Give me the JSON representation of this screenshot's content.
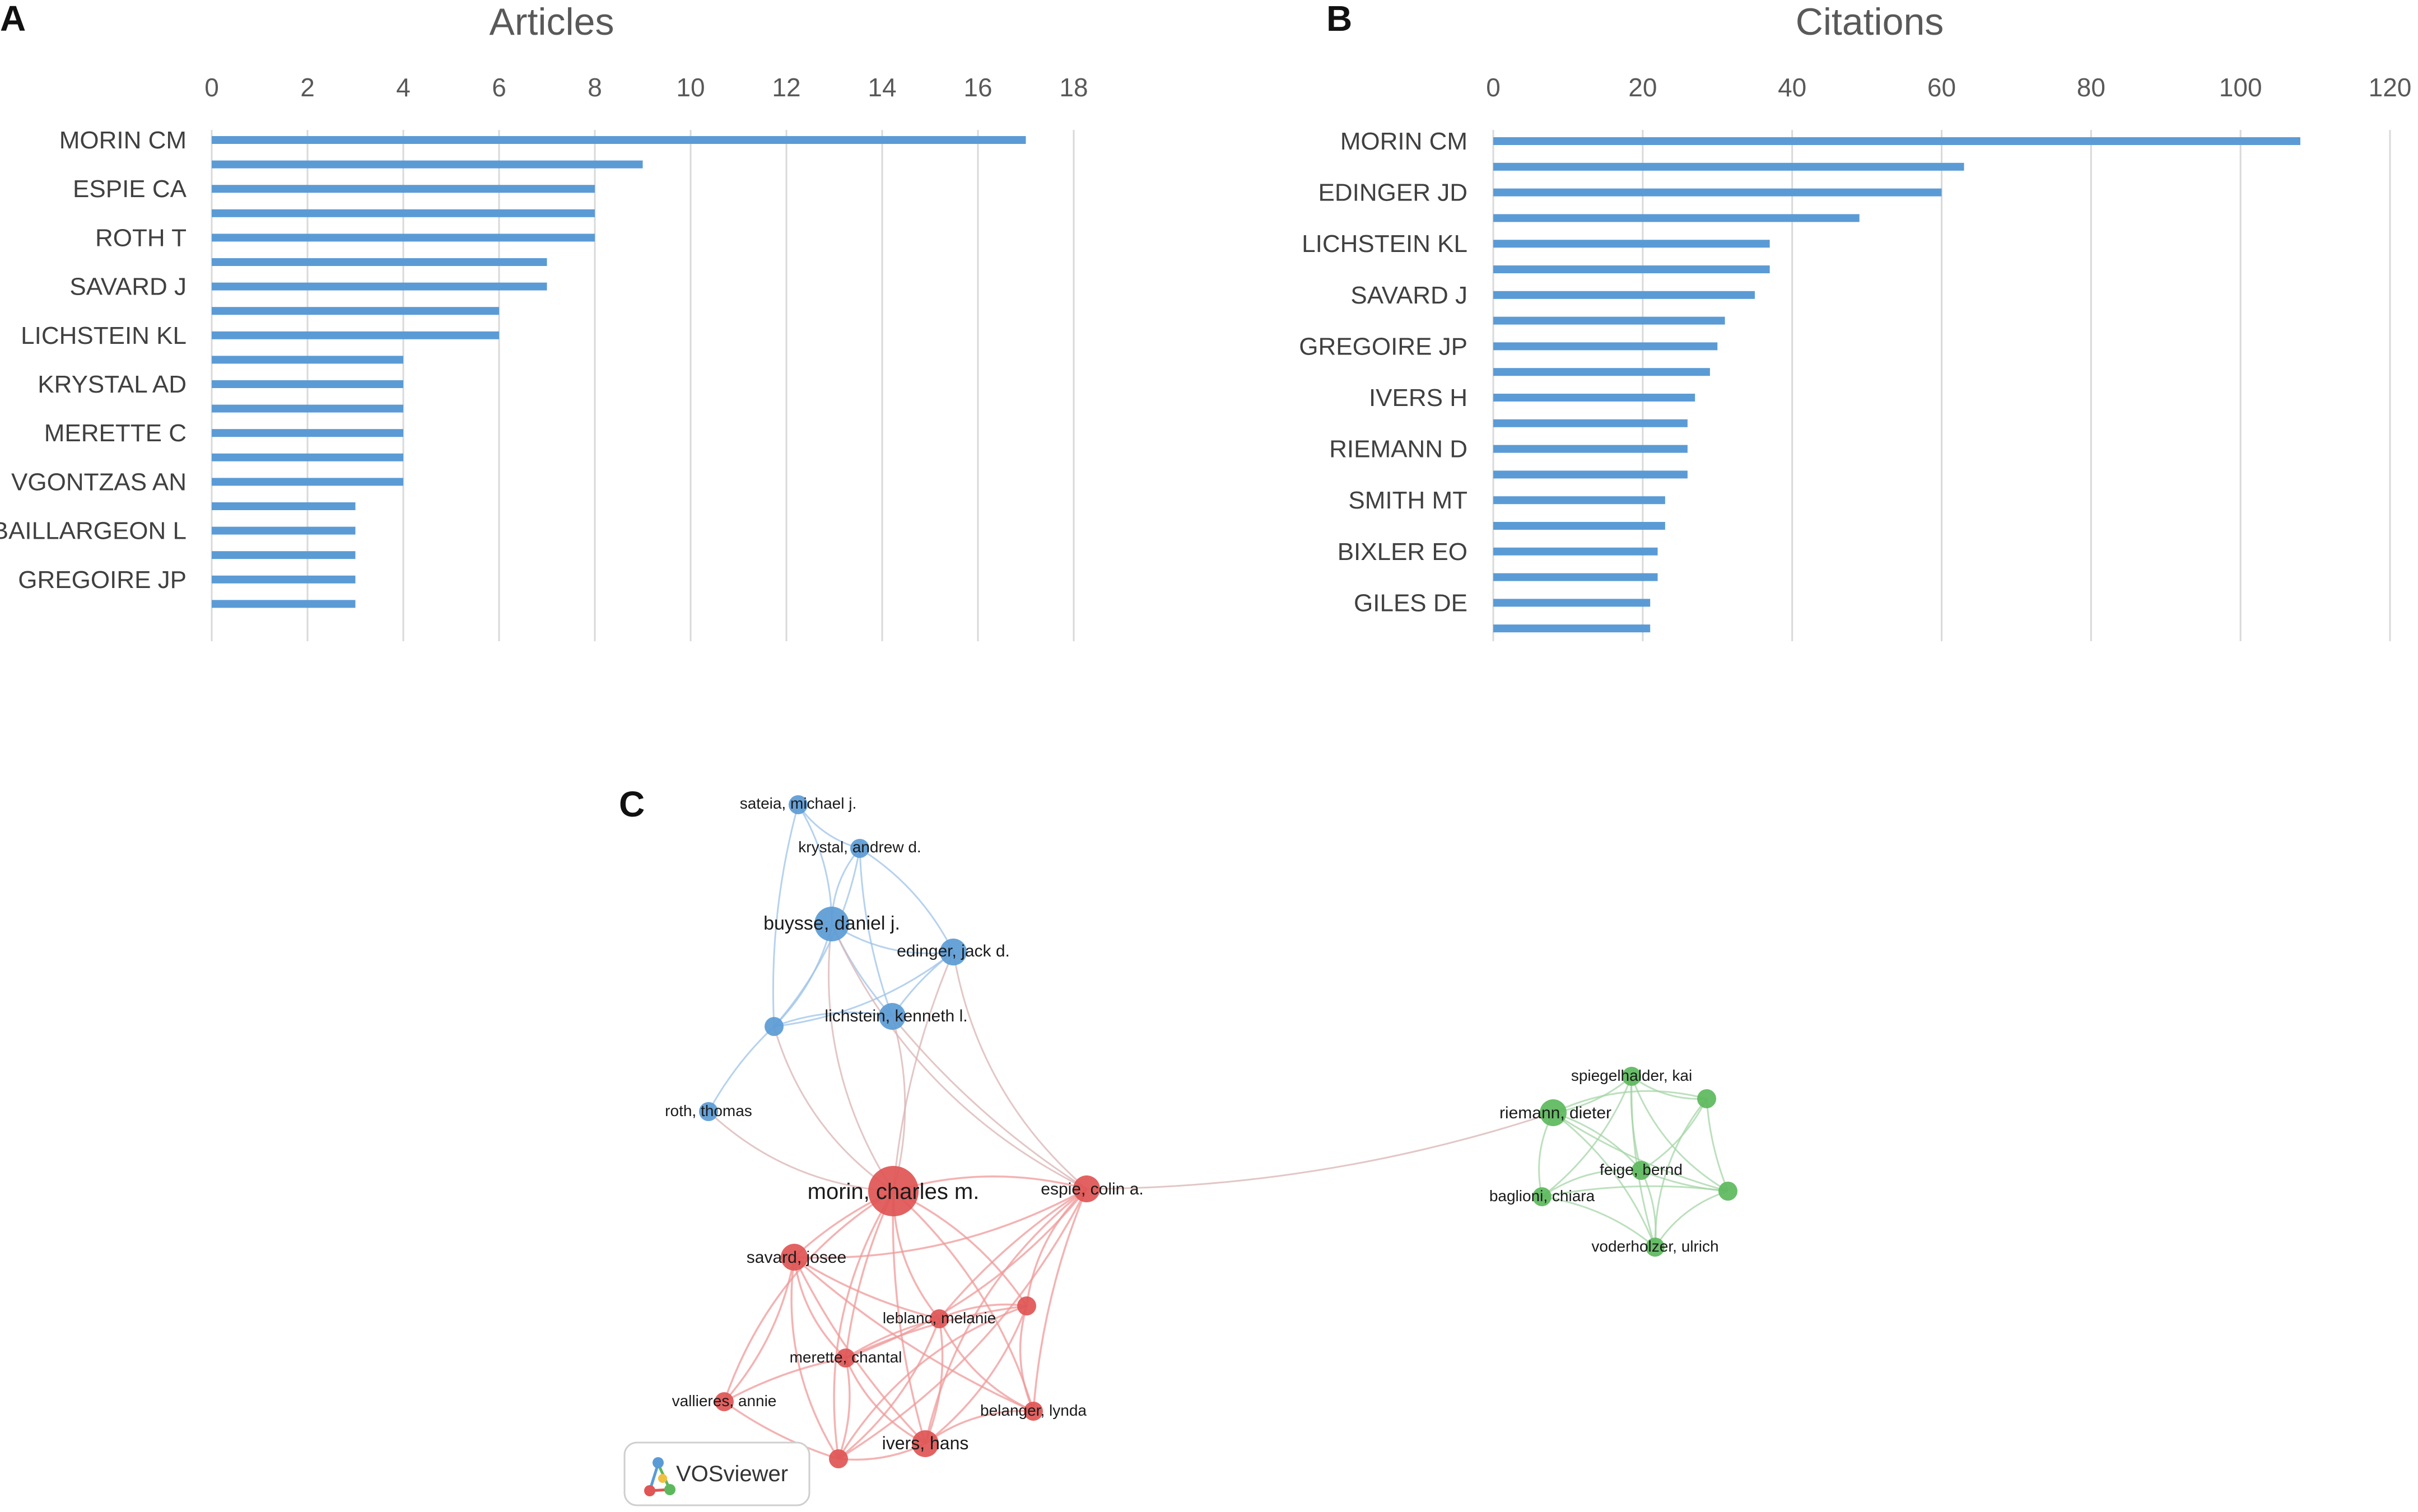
{
  "panels": {
    "a": "A",
    "b": "B",
    "c": "C"
  },
  "chart_data": [
    {
      "type": "bar",
      "orientation": "horizontal",
      "title": "Articles",
      "xlim": [
        0,
        18
      ],
      "xticks": [
        "0",
        "2",
        "4",
        "6",
        "8",
        "10",
        "12",
        "14",
        "16",
        "18"
      ],
      "grid": true,
      "categories": [
        "MORIN CM",
        "",
        "ESPIE CA",
        "",
        "ROTH T",
        "",
        "SAVARD J",
        "",
        "LICHSTEIN KL",
        "",
        "KRYSTAL AD",
        "",
        "MERETTE C",
        "",
        "VGONTZAS AN",
        "",
        "BAILLARGEON L",
        "",
        "GREGOIRE JP",
        ""
      ],
      "values": [
        17,
        9,
        8,
        8,
        8,
        7,
        7,
        6,
        6,
        4,
        4,
        4,
        4,
        4,
        4,
        3,
        3,
        3,
        3,
        3
      ],
      "color": "#5b9bd5"
    },
    {
      "type": "bar",
      "orientation": "horizontal",
      "title": "Citations",
      "xlim": [
        0,
        120
      ],
      "xticks": [
        "0",
        "20",
        "40",
        "60",
        "80",
        "100",
        "120"
      ],
      "grid": true,
      "categories": [
        "MORIN CM",
        "",
        "EDINGER JD",
        "",
        "LICHSTEIN KL",
        "",
        "SAVARD J",
        "",
        "GREGOIRE JP",
        "",
        "IVERS H",
        "",
        "RIEMANN D",
        "",
        "SMITH MT",
        "",
        "BIXLER EO",
        "",
        "GILES DE",
        ""
      ],
      "values": [
        108,
        63,
        60,
        49,
        37,
        37,
        35,
        31,
        30,
        29,
        27,
        26,
        26,
        26,
        23,
        23,
        22,
        22,
        21,
        21
      ],
      "color": "#5b9bd5"
    }
  ],
  "network": {
    "clusters": [
      {
        "name": "blue",
        "color": "#5b9bd5",
        "edge_color": "#9ec3e8"
      },
      {
        "name": "red",
        "color": "#e05555",
        "edge_color": "#ef9a9a"
      },
      {
        "name": "green",
        "color": "#5cb85c",
        "edge_color": "#a5d6a7"
      }
    ],
    "nodes": [
      {
        "label": "sateia, michael j.",
        "cluster": "blue",
        "weight": 1
      },
      {
        "label": "krystal, andrew d.",
        "cluster": "blue",
        "weight": 1
      },
      {
        "label": "buysse, daniel j.",
        "cluster": "blue",
        "weight": 3
      },
      {
        "label": "edinger, jack d.",
        "cluster": "blue",
        "weight": 2
      },
      {
        "label": "",
        "cluster": "blue",
        "weight": 1
      },
      {
        "label": "lichstein, kenneth l.",
        "cluster": "blue",
        "weight": 2
      },
      {
        "label": "roth, thomas",
        "cluster": "blue",
        "weight": 1
      },
      {
        "label": "morin, charles m.",
        "cluster": "red",
        "weight": 5
      },
      {
        "label": "espie, colin a.",
        "cluster": "red",
        "weight": 2
      },
      {
        "label": "savard, josee",
        "cluster": "red",
        "weight": 2
      },
      {
        "label": "leblanc, melanie",
        "cluster": "red",
        "weight": 1
      },
      {
        "label": "",
        "cluster": "red",
        "weight": 1
      },
      {
        "label": "merette, chantal",
        "cluster": "red",
        "weight": 1
      },
      {
        "label": "vallieres, annie",
        "cluster": "red",
        "weight": 1
      },
      {
        "label": "belanger, lynda",
        "cluster": "red",
        "weight": 1
      },
      {
        "label": "ivers, hans",
        "cluster": "red",
        "weight": 2
      },
      {
        "label": "",
        "cluster": "red",
        "weight": 1
      },
      {
        "label": "spiegelhalder, kai",
        "cluster": "green",
        "weight": 1
      },
      {
        "label": "",
        "cluster": "green",
        "weight": 1
      },
      {
        "label": "riemann, dieter",
        "cluster": "green",
        "weight": 2
      },
      {
        "label": "feige, bernd",
        "cluster": "green",
        "weight": 1
      },
      {
        "label": "",
        "cluster": "green",
        "weight": 1
      },
      {
        "label": "baglioni, chiara",
        "cluster": "green",
        "weight": 1
      },
      {
        "label": "voderholzer, ulrich",
        "cluster": "green",
        "weight": 1
      }
    ],
    "logo_text": "VOSviewer"
  }
}
